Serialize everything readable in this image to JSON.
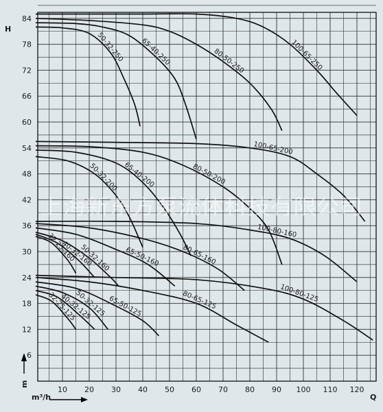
{
  "chart_data": {
    "type": "line",
    "y_axis_letter": "H",
    "y_unit": "m",
    "x_axis_letter": "Q",
    "x_unit": "m³/h",
    "xlim": [
      0,
      130
    ],
    "ylim": [
      0,
      87
    ],
    "x_ticks": [
      10,
      20,
      30,
      40,
      50,
      60,
      70,
      80,
      90,
      100,
      110,
      120
    ],
    "y_ticks": [
      6,
      12,
      18,
      24,
      30,
      36,
      42,
      48,
      54,
      60,
      66,
      72,
      78,
      84
    ],
    "grid": true,
    "watermark": "上海新东方泵流体科技有限公司",
    "colors": {
      "background": "#dfe7ea",
      "grid": "#2a2a2a",
      "curve": "#111111",
      "axis": "#000000"
    },
    "series": [
      {
        "name": "100-65-250",
        "points": [
          [
            0,
            85
          ],
          [
            20,
            85
          ],
          [
            40,
            85
          ],
          [
            60,
            85
          ],
          [
            75,
            84
          ],
          [
            85,
            82
          ],
          [
            95,
            78
          ],
          [
            105,
            72
          ],
          [
            112,
            67
          ],
          [
            120,
            61.5
          ]
        ]
      },
      {
        "name": "80-50-250",
        "points": [
          [
            0,
            84
          ],
          [
            20,
            83.5
          ],
          [
            40,
            82.5
          ],
          [
            50,
            81
          ],
          [
            60,
            78
          ],
          [
            70,
            74
          ],
          [
            80,
            69
          ],
          [
            88,
            63
          ],
          [
            92,
            58
          ]
        ]
      },
      {
        "name": "65-40-250",
        "points": [
          [
            0,
            83
          ],
          [
            15,
            82.8
          ],
          [
            25,
            82
          ],
          [
            35,
            80
          ],
          [
            45,
            75
          ],
          [
            52,
            70
          ],
          [
            56,
            64
          ],
          [
            60,
            56
          ]
        ]
      },
      {
        "name": "50-32-250",
        "points": [
          [
            0,
            82
          ],
          [
            10,
            81.8
          ],
          [
            20,
            80.5
          ],
          [
            28,
            76
          ],
          [
            33,
            70
          ],
          [
            37,
            64
          ],
          [
            39,
            59
          ]
        ]
      },
      {
        "name": "100-65-200",
        "points": [
          [
            0,
            55.5
          ],
          [
            30,
            55.3
          ],
          [
            60,
            55
          ],
          [
            80,
            54
          ],
          [
            95,
            52
          ],
          [
            105,
            48
          ],
          [
            115,
            43
          ],
          [
            123,
            37
          ]
        ]
      },
      {
        "name": "80-50-200",
        "points": [
          [
            0,
            54.5
          ],
          [
            20,
            54.3
          ],
          [
            40,
            53
          ],
          [
            55,
            50
          ],
          [
            70,
            45
          ],
          [
            80,
            40
          ],
          [
            87,
            35
          ],
          [
            92,
            27
          ]
        ]
      },
      {
        "name": "65-40-200",
        "points": [
          [
            0,
            53.5
          ],
          [
            15,
            53
          ],
          [
            30,
            50.5
          ],
          [
            40,
            46
          ],
          [
            48,
            40
          ],
          [
            54,
            34
          ],
          [
            58,
            29
          ]
        ]
      },
      {
        "name": "50-32-200",
        "points": [
          [
            0,
            52
          ],
          [
            12,
            51
          ],
          [
            22,
            48
          ],
          [
            30,
            43
          ],
          [
            35,
            38
          ],
          [
            40,
            31
          ]
        ]
      },
      {
        "name": "100-80-160",
        "points": [
          [
            0,
            37
          ],
          [
            30,
            37
          ],
          [
            60,
            36.5
          ],
          [
            80,
            35
          ],
          [
            95,
            33
          ],
          [
            108,
            29
          ],
          [
            120,
            23
          ]
        ]
      },
      {
        "name": "80-65-160",
        "points": [
          [
            0,
            36.5
          ],
          [
            20,
            35.5
          ],
          [
            40,
            33
          ],
          [
            55,
            30
          ],
          [
            68,
            26
          ],
          [
            78,
            21
          ]
        ]
      },
      {
        "name": "65-50-160",
        "points": [
          [
            0,
            35.5
          ],
          [
            15,
            34
          ],
          [
            30,
            30.5
          ],
          [
            42,
            27
          ],
          [
            52,
            22
          ]
        ]
      },
      {
        "name": "50-32-160",
        "points": [
          [
            0,
            34.5
          ],
          [
            10,
            32.5
          ],
          [
            20,
            28.5
          ],
          [
            28,
            24
          ],
          [
            31,
            22
          ]
        ]
      },
      {
        "name": "40-32-160",
        "points": [
          [
            0,
            34
          ],
          [
            8,
            32
          ],
          [
            16,
            28
          ],
          [
            22,
            24
          ]
        ]
      },
      {
        "name": "32-25-160",
        "points": [
          [
            0,
            33.5
          ],
          [
            6,
            32
          ],
          [
            12,
            28
          ],
          [
            15,
            25
          ]
        ]
      },
      {
        "name": "100-80-125",
        "points": [
          [
            0,
            24.5
          ],
          [
            30,
            24
          ],
          [
            60,
            23.5
          ],
          [
            85,
            21.5
          ],
          [
            100,
            19
          ],
          [
            115,
            14
          ],
          [
            126,
            9.5
          ]
        ]
      },
      {
        "name": "80-65-125",
        "points": [
          [
            0,
            24
          ],
          [
            20,
            23
          ],
          [
            40,
            21
          ],
          [
            60,
            18
          ],
          [
            75,
            13
          ],
          [
            87,
            9
          ]
        ]
      },
      {
        "name": "65-50-125",
        "points": [
          [
            0,
            23
          ],
          [
            15,
            21.5
          ],
          [
            28,
            18
          ],
          [
            40,
            14
          ],
          [
            46,
            10.5
          ]
        ]
      },
      {
        "name": "50-32-125",
        "points": [
          [
            0,
            22
          ],
          [
            10,
            20.5
          ],
          [
            20,
            17
          ],
          [
            27,
            12
          ]
        ]
      },
      {
        "name": "40-32-125",
        "points": [
          [
            0,
            21
          ],
          [
            8,
            19.5
          ],
          [
            16,
            15.5
          ],
          [
            22,
            12
          ]
        ]
      },
      {
        "name": "32-25-125",
        "points": [
          [
            0,
            20
          ],
          [
            6,
            18.5
          ],
          [
            12,
            14.5
          ],
          [
            15,
            12
          ]
        ]
      }
    ]
  }
}
